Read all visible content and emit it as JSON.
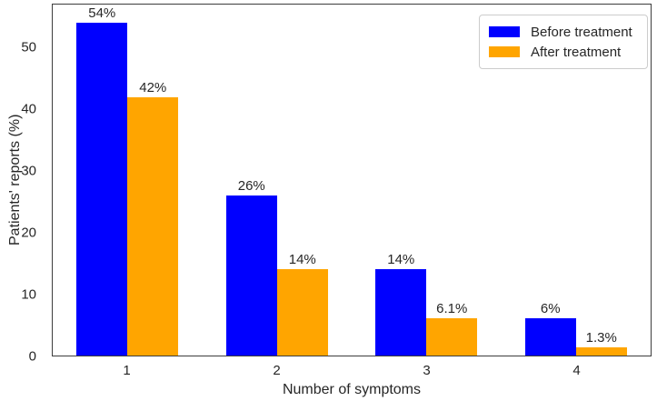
{
  "chart_data": {
    "type": "bar",
    "title": "",
    "xlabel": "Number of symptoms",
    "ylabel": "Patients' reports (%)",
    "categories": [
      "1",
      "2",
      "3",
      "4"
    ],
    "series": [
      {
        "name": "Before treatment",
        "color": "#0000ff",
        "values": [
          54,
          26,
          14,
          6
        ],
        "bar_labels": [
          "54%",
          "26%",
          "14%",
          "6%"
        ]
      },
      {
        "name": "After treatment",
        "color": "#ffa500",
        "values": [
          42,
          14,
          6.1,
          1.3
        ],
        "bar_labels": [
          "42%",
          "14%",
          "6.1%",
          "1.3%"
        ]
      }
    ],
    "yticks": [
      0,
      10,
      20,
      30,
      40,
      50
    ],
    "ylim": [
      0,
      57
    ],
    "grid": false,
    "legend_position": "top-right",
    "spine_color": "#3d3d3d",
    "text_color": "#262626",
    "legend_border_color": "#cccccc"
  }
}
